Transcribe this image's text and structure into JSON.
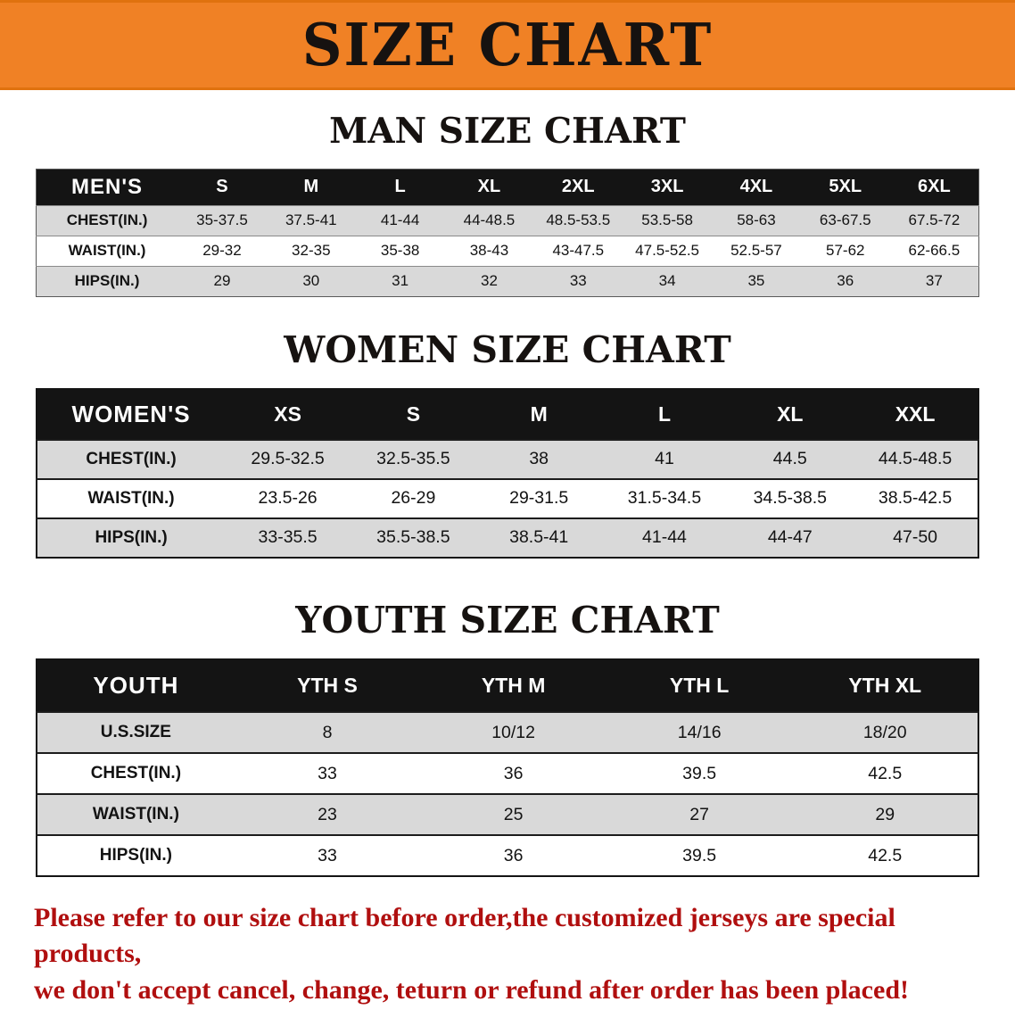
{
  "colors": {
    "banner_bg": "#f08125",
    "table_header_bg": "#141414",
    "table_header_text": "#ffffff",
    "row_stripe": "#d9d9d9",
    "footer_text": "#b00f0f"
  },
  "banner": {
    "title": "SIZE CHART"
  },
  "sections": [
    {
      "title": "MAN SIZE CHART",
      "header": [
        "MEN'S",
        "S",
        "M",
        "L",
        "XL",
        "2XL",
        "3XL",
        "4XL",
        "5XL",
        "6XL"
      ],
      "rows": [
        [
          "CHEST(IN.)",
          "35-37.5",
          "37.5-41",
          "41-44",
          "44-48.5",
          "48.5-53.5",
          "53.5-58",
          "58-63",
          "63-67.5",
          "67.5-72"
        ],
        [
          "WAIST(IN.)",
          "29-32",
          "32-35",
          "35-38",
          "38-43",
          "43-47.5",
          "47.5-52.5",
          "52.5-57",
          "57-62",
          "62-66.5"
        ],
        [
          "HIPS(IN.)",
          "29",
          "30",
          "31",
          "32",
          "33",
          "34",
          "35",
          "36",
          "37"
        ]
      ]
    },
    {
      "title": "WOMEN SIZE CHART",
      "header": [
        "WOMEN'S",
        "XS",
        "S",
        "M",
        "L",
        "XL",
        "XXL"
      ],
      "rows": [
        [
          "CHEST(IN.)",
          "29.5-32.5",
          "32.5-35.5",
          "38",
          "41",
          "44.5",
          "44.5-48.5"
        ],
        [
          "WAIST(IN.)",
          "23.5-26",
          "26-29",
          "29-31.5",
          "31.5-34.5",
          "34.5-38.5",
          "38.5-42.5"
        ],
        [
          "HIPS(IN.)",
          "33-35.5",
          "35.5-38.5",
          "38.5-41",
          "41-44",
          "44-47",
          "47-50"
        ]
      ]
    },
    {
      "title": "YOUTH SIZE CHART",
      "header": [
        "YOUTH",
        "YTH S",
        "YTH M",
        "YTH L",
        "YTH XL"
      ],
      "rows": [
        [
          "U.S.SIZE",
          "8",
          "10/12",
          "14/16",
          "18/20"
        ],
        [
          "CHEST(IN.)",
          "33",
          "36",
          "39.5",
          "42.5"
        ],
        [
          "WAIST(IN.)",
          "23",
          "25",
          "27",
          "29"
        ],
        [
          "HIPS(IN.)",
          "33",
          "36",
          "39.5",
          "42.5"
        ]
      ]
    }
  ],
  "footer": {
    "line1": "Please refer to our size chart before order,the customized jerseys are special products,",
    "line2": "we don't accept cancel, change, teturn or refund after order has been placed!"
  }
}
